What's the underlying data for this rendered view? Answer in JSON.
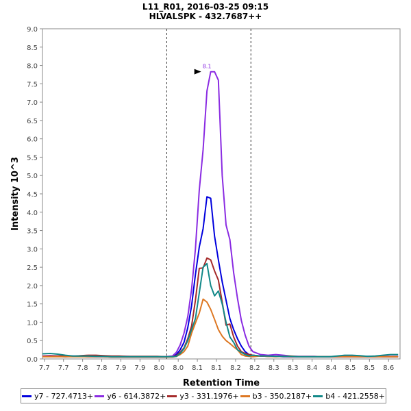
{
  "chart_data": {
    "type": "line",
    "title": "L11_R01, 2016-03-25 09:15",
    "subtitle": "HLVALSPK - 432.7687++",
    "xlabel": "Retention Time",
    "ylabel": "Intensity 10^3",
    "xlim": [
      7.695,
      8.63
    ],
    "ylim": [
      0,
      9.0
    ],
    "x_tick_values": [
      7.7,
      7.75,
      7.8,
      7.85,
      7.9,
      7.95,
      8.0,
      8.05,
      8.1,
      8.15,
      8.2,
      8.25,
      8.3,
      8.35,
      8.4,
      8.45,
      8.5,
      8.55,
      8.6
    ],
    "x_tick_labels": [
      "7.7",
      "7.7",
      "7.8",
      "7.8",
      "7.9",
      "7.9",
      "8.0",
      "8.0",
      "8.1",
      "8.1",
      "8.2",
      "8.2",
      "8.3",
      "8.3",
      "8.4",
      "8.4",
      "8.5",
      "8.5",
      "8.6"
    ],
    "y_ticks": [
      "0.0",
      "0.5",
      "1.0",
      "1.5",
      "2.0",
      "2.5",
      "3.0",
      "3.5",
      "4.0",
      "4.5",
      "5.0",
      "5.5",
      "6.0",
      "6.5",
      "7.0",
      "7.5",
      "8.0",
      "8.5",
      "9.0"
    ],
    "boundaries": [
      8.02,
      8.24
    ],
    "peak_annotation": {
      "x": 8.11,
      "y": 7.83,
      "label": "8.1"
    },
    "x": [
      7.695,
      7.715,
      7.735,
      7.755,
      7.775,
      7.795,
      7.815,
      7.835,
      7.855,
      7.875,
      7.895,
      7.915,
      7.935,
      7.955,
      7.975,
      7.995,
      8.015,
      8.035,
      8.045,
      8.055,
      8.065,
      8.075,
      8.085,
      8.095,
      8.105,
      8.115,
      8.125,
      8.135,
      8.145,
      8.155,
      8.165,
      8.175,
      8.185,
      8.195,
      8.205,
      8.215,
      8.225,
      8.235,
      8.245,
      8.265,
      8.285,
      8.305,
      8.325,
      8.345,
      8.365,
      8.385,
      8.405,
      8.425,
      8.445,
      8.465,
      8.485,
      8.505,
      8.525,
      8.545,
      8.565,
      8.585,
      8.605,
      8.625
    ],
    "series": [
      {
        "name": "y7 - 727.4713+",
        "color": "#0000dd",
        "values": [
          0.07,
          0.07,
          0.07,
          0.06,
          0.07,
          0.07,
          0.06,
          0.06,
          0.06,
          0.05,
          0.05,
          0.05,
          0.05,
          0.05,
          0.05,
          0.05,
          0.05,
          0.06,
          0.12,
          0.25,
          0.45,
          0.85,
          1.45,
          2.3,
          3.05,
          3.55,
          4.42,
          4.38,
          3.35,
          2.7,
          2.1,
          1.6,
          1.1,
          0.8,
          0.55,
          0.35,
          0.2,
          0.12,
          0.1,
          0.08,
          0.07,
          0.07,
          0.06,
          0.06,
          0.06,
          0.06,
          0.06,
          0.06,
          0.06,
          0.06,
          0.06,
          0.06,
          0.06,
          0.07,
          0.07,
          0.06,
          0.06,
          0.06
        ]
      },
      {
        "name": "y6 - 614.3872+",
        "color": "#8a2be2",
        "values": [
          0.08,
          0.09,
          0.08,
          0.08,
          0.08,
          0.08,
          0.08,
          0.07,
          0.07,
          0.07,
          0.07,
          0.07,
          0.06,
          0.06,
          0.06,
          0.06,
          0.06,
          0.08,
          0.18,
          0.38,
          0.7,
          1.15,
          1.9,
          3.0,
          4.6,
          5.7,
          7.3,
          7.83,
          7.83,
          7.6,
          5.0,
          3.65,
          3.25,
          2.35,
          1.65,
          1.05,
          0.65,
          0.35,
          0.2,
          0.12,
          0.1,
          0.12,
          0.1,
          0.08,
          0.07,
          0.07,
          0.07,
          0.06,
          0.06,
          0.06,
          0.06,
          0.07,
          0.06,
          0.06,
          0.06,
          0.07,
          0.07,
          0.07
        ]
      },
      {
        "name": "y3 - 331.1976+",
        "color": "#a52a2a",
        "values": [
          0.07,
          0.08,
          0.08,
          0.08,
          0.07,
          0.09,
          0.1,
          0.1,
          0.09,
          0.08,
          0.08,
          0.07,
          0.07,
          0.07,
          0.07,
          0.07,
          0.06,
          0.06,
          0.09,
          0.18,
          0.3,
          0.55,
          0.9,
          1.6,
          2.47,
          2.48,
          2.75,
          2.7,
          2.4,
          2.15,
          1.55,
          0.92,
          0.95,
          0.6,
          0.35,
          0.2,
          0.15,
          0.12,
          0.1,
          0.08,
          0.07,
          0.07,
          0.07,
          0.06,
          0.06,
          0.06,
          0.06,
          0.06,
          0.06,
          0.06,
          0.06,
          0.06,
          0.06,
          0.06,
          0.06,
          0.06,
          0.06,
          0.06
        ]
      },
      {
        "name": "b3 - 350.2187+",
        "color": "#dd7722",
        "values": [
          0.06,
          0.06,
          0.06,
          0.06,
          0.06,
          0.06,
          0.06,
          0.06,
          0.06,
          0.05,
          0.05,
          0.05,
          0.05,
          0.05,
          0.05,
          0.05,
          0.05,
          0.05,
          0.07,
          0.12,
          0.2,
          0.35,
          0.7,
          0.98,
          1.25,
          1.63,
          1.55,
          1.35,
          1.08,
          0.8,
          0.62,
          0.5,
          0.42,
          0.33,
          0.25,
          0.12,
          0.08,
          0.07,
          0.06,
          0.08,
          0.07,
          0.06,
          0.07,
          0.08,
          0.06,
          0.06,
          0.06,
          0.06,
          0.06,
          0.06,
          0.06,
          0.06,
          0.06,
          0.06,
          0.06,
          0.06,
          0.06,
          0.06
        ]
      },
      {
        "name": "b4 - 421.2558+",
        "color": "#118888",
        "values": [
          0.14,
          0.15,
          0.13,
          0.1,
          0.08,
          0.08,
          0.08,
          0.07,
          0.07,
          0.06,
          0.06,
          0.06,
          0.06,
          0.06,
          0.06,
          0.06,
          0.06,
          0.06,
          0.07,
          0.15,
          0.28,
          0.5,
          0.8,
          1.1,
          1.8,
          2.5,
          2.6,
          2.0,
          1.72,
          1.85,
          1.5,
          1.0,
          0.6,
          0.45,
          0.25,
          0.18,
          0.12,
          0.08,
          0.1,
          0.08,
          0.08,
          0.07,
          0.07,
          0.07,
          0.06,
          0.06,
          0.06,
          0.06,
          0.06,
          0.08,
          0.1,
          0.1,
          0.09,
          0.07,
          0.08,
          0.1,
          0.12,
          0.12
        ]
      }
    ]
  }
}
